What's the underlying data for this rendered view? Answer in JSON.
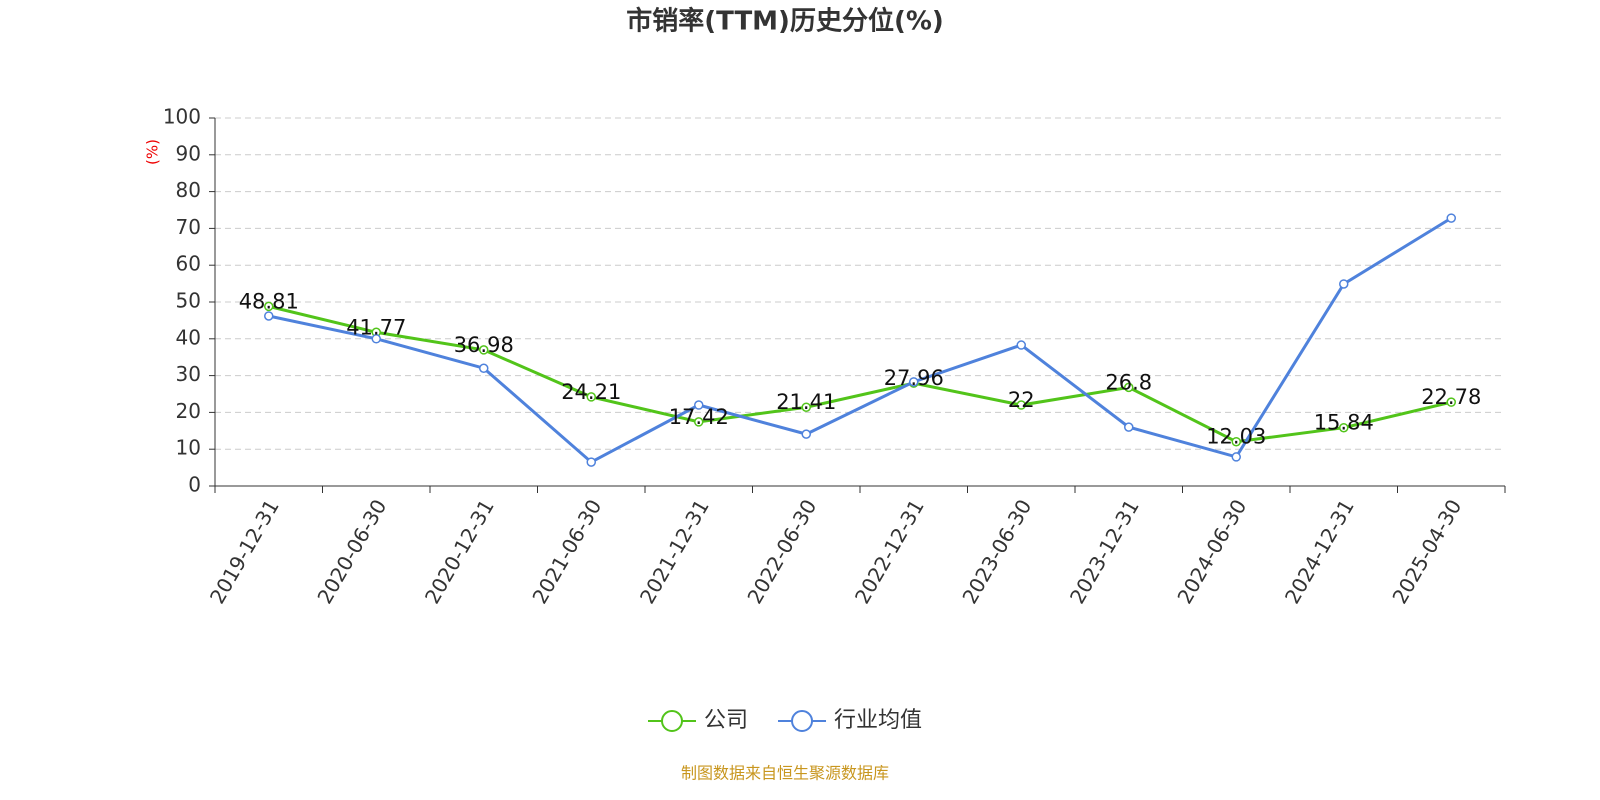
{
  "chart_data": {
    "type": "line",
    "title": "市销率(TTM)历史分位(%)",
    "y_label": "(%)",
    "source": "制图数据来自恒生聚源数据库",
    "categories": [
      "2019-12-31",
      "2020-06-30",
      "2020-12-31",
      "2021-06-30",
      "2021-12-31",
      "2022-06-30",
      "2022-12-31",
      "2023-06-30",
      "2023-12-31",
      "2024-06-30",
      "2024-12-31",
      "2025-04-30"
    ],
    "series": [
      {
        "name": "公司",
        "color": "#52c41a",
        "labeled": true,
        "values": [
          48.81,
          41.77,
          36.98,
          24.21,
          17.42,
          21.41,
          27.96,
          22,
          26.8,
          12.03,
          15.84,
          22.78
        ]
      },
      {
        "name": "行业均值",
        "color": "#4f82dc",
        "labeled": false,
        "values": [
          46.2,
          40,
          32,
          6.5,
          22,
          14.1,
          28.3,
          38.3,
          16,
          7.9,
          54.9,
          72.8
        ]
      }
    ],
    "ylim": [
      0,
      100
    ],
    "yticks": [
      0,
      10,
      20,
      30,
      40,
      50,
      60,
      70,
      80,
      90,
      100
    ],
    "grid": true
  }
}
